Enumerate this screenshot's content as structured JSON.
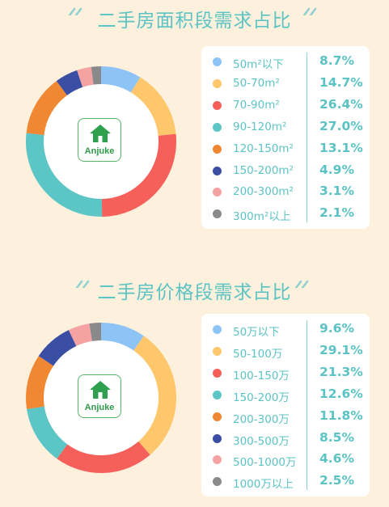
{
  "colors": {
    "series": [
      "#8ec4f5",
      "#fec76c",
      "#f6605b",
      "#5cc6c6",
      "#f08833",
      "#3a4fa4",
      "#f5a2a3",
      "#8a8a8a"
    ],
    "accent": "#5cc3c4",
    "background": "#fdf1de"
  },
  "logo": {
    "text": "Anjuke",
    "icon": "house-icon"
  },
  "chart_data": [
    {
      "type": "pie",
      "title": "二手房面积段需求占比",
      "categories": [
        "50m²以下",
        "50-70m²",
        "70-90m²",
        "90-120m²",
        "120-150m²",
        "150-200m²",
        "200-300m²",
        "300m²以上"
      ],
      "values": [
        8.7,
        14.7,
        26.4,
        27.0,
        13.1,
        4.9,
        3.1,
        2.1
      ],
      "value_labels": [
        "8.7%",
        "14.7%",
        "26.4%",
        "27.0%",
        "13.1%",
        "4.9%",
        "3.1%",
        "2.1%"
      ],
      "legend": "right"
    },
    {
      "type": "pie",
      "title": "二手房价格段需求占比",
      "categories": [
        "50万以下",
        "50-100万",
        "100-150万",
        "150-200万",
        "200-300万",
        "300-500万",
        "500-1000万",
        "1000万以上"
      ],
      "values": [
        9.6,
        29.1,
        21.3,
        12.6,
        11.8,
        8.5,
        4.6,
        2.5
      ],
      "value_labels": [
        "9.6%",
        "29.1%",
        "21.3%",
        "12.6%",
        "11.8%",
        "8.5%",
        "4.6%",
        "2.5%"
      ],
      "legend": "right"
    }
  ]
}
